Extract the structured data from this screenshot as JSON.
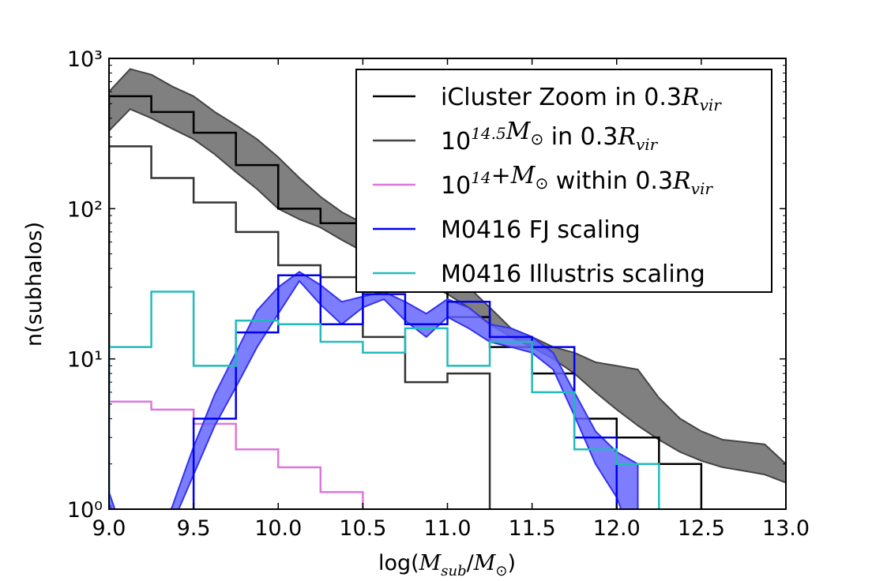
{
  "chart_data": {
    "type": "line",
    "xlabel": "log(M_sub/M_⊙)",
    "ylabel": "n(subhalos)",
    "xlim": [
      9.0,
      13.0
    ],
    "ylim": [
      1,
      1000
    ],
    "yscale": "log",
    "grid": false,
    "legend_position": "top-right",
    "x_ticks": [
      "9.0",
      "9.5",
      "10.0",
      "10.5",
      "11.0",
      "11.5",
      "12.0",
      "12.5",
      "13.0"
    ],
    "y_ticks": [
      {
        "value": 1,
        "label": "10⁰"
      },
      {
        "value": 10,
        "label": "10¹"
      },
      {
        "value": 100,
        "label": "10²"
      },
      {
        "value": 1000,
        "label": "10³"
      }
    ],
    "series": [
      {
        "name": "iCluster Zoom in 0.3R_vir",
        "kind": "step",
        "color": "#000000",
        "edges": [
          9.0,
          9.25,
          9.5,
          9.75,
          10.0,
          10.25,
          10.5,
          10.75,
          11.0,
          11.25,
          11.5,
          11.75,
          12.0,
          12.25,
          12.5
        ],
        "values": [
          560,
          440,
          320,
          195,
          100,
          80,
          60,
          35,
          19,
          12,
          8,
          4,
          3,
          2
        ]
      },
      {
        "name": "10^{14.5}M_⊙ in 0.3R_vir",
        "kind": "band",
        "color": "#444444",
        "fill": "#808080",
        "x": [
          9.0,
          9.125,
          9.25,
          9.375,
          9.5,
          9.625,
          9.75,
          9.875,
          10.0,
          10.125,
          10.25,
          10.375,
          10.5,
          10.625,
          10.75,
          10.875,
          11.0,
          11.125,
          11.25,
          11.375,
          11.5,
          11.625,
          11.75,
          11.875,
          12.0,
          12.125,
          12.25,
          12.375,
          12.5,
          12.625,
          12.75,
          12.875,
          13.0
        ],
        "upper": [
          600,
          850,
          780,
          650,
          560,
          440,
          360,
          290,
          220,
          160,
          120,
          95,
          80,
          65,
          55,
          45,
          36,
          30,
          22,
          16,
          14,
          12,
          11,
          9.5,
          9,
          8.5,
          5.5,
          4,
          3.3,
          2.9,
          2.8,
          2.7,
          2
        ],
        "lower": [
          330,
          460,
          400,
          340,
          290,
          230,
          175,
          135,
          100,
          85,
          75,
          62,
          52,
          44,
          38,
          32,
          27,
          22,
          17,
          14,
          12,
          10,
          8,
          6,
          4.6,
          3.6,
          2.9,
          2.4,
          2.1,
          1.9,
          1.8,
          1.7,
          1.5
        ]
      },
      {
        "name": "10^{14.5}M_⊙ in 0.3R_vir (halo)",
        "kind": "step",
        "color": "#333333",
        "legend": false,
        "edges": [
          9.0,
          9.25,
          9.5,
          9.75,
          10.0,
          10.25,
          10.5,
          10.75,
          11.0,
          11.25
        ],
        "values": [
          260,
          160,
          110,
          70,
          42,
          35,
          14,
          7,
          8
        ]
      },
      {
        "name": "10^{14}+M_⊙ within 0.3R_vir",
        "kind": "step",
        "color": "#dd77dd",
        "edges": [
          9.0,
          9.25,
          9.5,
          9.75,
          10.0,
          10.25,
          10.5
        ],
        "values": [
          5.2,
          4.6,
          3.7,
          2.5,
          1.9,
          1.3
        ]
      },
      {
        "name": "M0416 FJ scaling (band)",
        "kind": "band",
        "color": "#3333ee",
        "fill": "#6666ff",
        "legend": false,
        "x": [
          9.0,
          9.125,
          9.25,
          9.375,
          9.5,
          9.625,
          9.75,
          9.875,
          10.0,
          10.125,
          10.25,
          10.375,
          10.5,
          10.625,
          10.75,
          10.875,
          11.0,
          11.125,
          11.25,
          11.375,
          11.5,
          11.625,
          11.75,
          11.875,
          12.0,
          12.125
        ],
        "upper": [
          1.3,
          0.5,
          0.5,
          1.05,
          2.6,
          5.8,
          11,
          21,
          30,
          38,
          31,
          24,
          26,
          28,
          24,
          20,
          25,
          22,
          17,
          16,
          14,
          11,
          6,
          3.3,
          2.4,
          2.0
        ],
        "lower": [
          1.1,
          0.5,
          0.5,
          0.8,
          1.7,
          3.6,
          6.5,
          12,
          20,
          33,
          23,
          17,
          22,
          25,
          18,
          14,
          19,
          16,
          13,
          12,
          11,
          8.5,
          4.2,
          2.0,
          1.2,
          0.5
        ]
      },
      {
        "name": "M0416 FJ scaling",
        "kind": "step",
        "color": "#0000ee",
        "edges": [
          9.5,
          9.75,
          10.0,
          10.25,
          10.5,
          10.75,
          11.0,
          11.25,
          11.5,
          11.75,
          12.0
        ],
        "values": [
          4,
          15,
          36,
          17,
          27,
          17,
          24,
          14,
          12,
          3
        ]
      },
      {
        "name": "M0416 Illustris scaling",
        "kind": "step",
        "color": "#22bbbb",
        "edges": [
          9.0,
          9.25,
          9.5,
          9.75,
          10.0,
          10.25,
          10.5,
          10.75,
          11.0,
          11.25,
          11.5,
          11.75,
          12.0,
          12.25
        ],
        "values": [
          12,
          28,
          9,
          18,
          17,
          13,
          11,
          16,
          9,
          13,
          6,
          2.5,
          2
        ]
      }
    ],
    "legend_entries": [
      {
        "color": "#000000",
        "prefix": "iCluster Zoom in 0.3",
        "math": "R",
        "sub": "vir",
        "sup": ""
      },
      {
        "color": "#444444",
        "prefix": "10",
        "sup": "14.5",
        "math": "M",
        "mathsub": "⊙",
        "suffix": " in 0.3",
        "math2": "R",
        "sub": "vir"
      },
      {
        "color": "#dd77dd",
        "prefix": "10",
        "sup": "14",
        "mathplus": "+",
        "math": "M",
        "mathsub": "⊙",
        "suffix": " within 0.3",
        "math2": "R",
        "sub": "vir"
      },
      {
        "color": "#0000ee",
        "label": "M0416 FJ scaling"
      },
      {
        "color": "#22bbbb",
        "label": "M0416 Illustris scaling"
      }
    ]
  }
}
